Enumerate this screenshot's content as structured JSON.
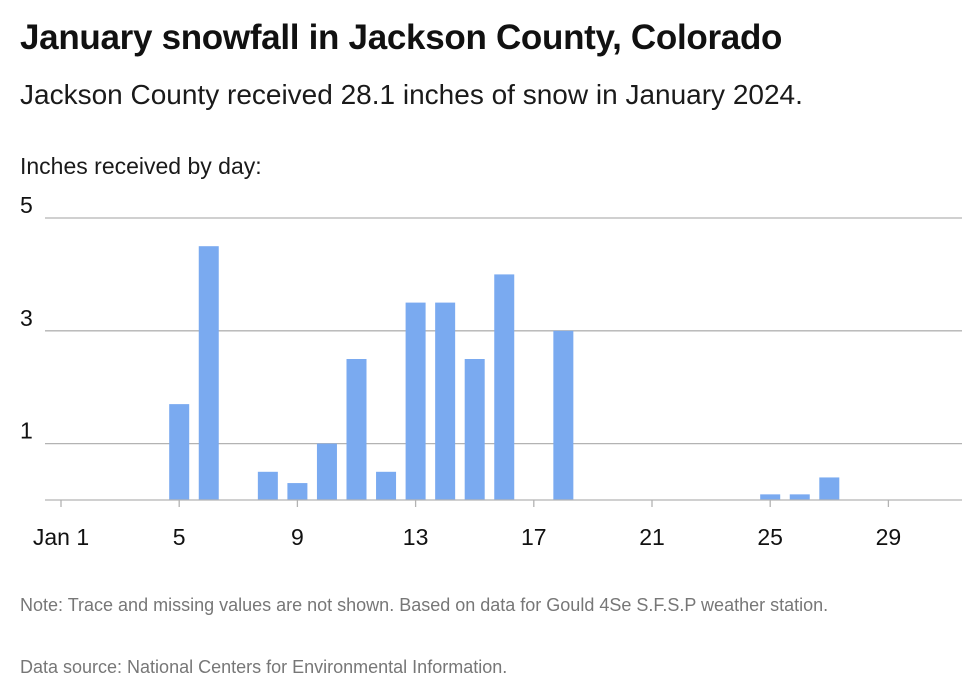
{
  "header": {
    "title": "January snowfall in Jackson County, Colorado",
    "subtitle": "Jackson County received 28.1 inches of snow in January 2024."
  },
  "footer": {
    "note": "Note: Trace and missing values are not shown. Based on data for Gould 4Se S.F.S.P weather station.",
    "source": "Data source: National Centers for Environmental Information."
  },
  "colors": {
    "bar": "#7aaaf0",
    "grid": "#b3b3b3",
    "text": "#111111",
    "footnote": "#777777"
  },
  "chart_data": {
    "type": "bar",
    "title": "January snowfall in Jackson County, Colorado",
    "subtitle": "Jackson County received 28.1 inches of snow in January 2024.",
    "ylabel": "Inches received by day:",
    "xlabel": "",
    "x": [
      1,
      2,
      3,
      4,
      5,
      6,
      7,
      8,
      9,
      10,
      11,
      12,
      13,
      14,
      15,
      16,
      17,
      18,
      19,
      20,
      21,
      22,
      23,
      24,
      25,
      26,
      27,
      28,
      29,
      30,
      31
    ],
    "values": [
      0,
      0,
      0,
      0,
      1.7,
      4.5,
      0,
      0.5,
      0.3,
      1.0,
      2.5,
      0.5,
      3.5,
      3.5,
      2.5,
      4.0,
      0,
      3.0,
      0,
      0,
      0,
      0,
      0,
      0,
      0.1,
      0.1,
      0.4,
      0,
      0,
      0,
      0
    ],
    "x_ticks": [
      {
        "x": 1,
        "label": "Jan 1"
      },
      {
        "x": 5,
        "label": "5"
      },
      {
        "x": 9,
        "label": "9"
      },
      {
        "x": 13,
        "label": "13"
      },
      {
        "x": 17,
        "label": "17"
      },
      {
        "x": 21,
        "label": "21"
      },
      {
        "x": 25,
        "label": "25"
      },
      {
        "x": 29,
        "label": "29"
      }
    ],
    "y_ticks": [
      1,
      3,
      5
    ],
    "ylim": [
      0,
      5
    ],
    "grid": true,
    "legend": "none"
  }
}
